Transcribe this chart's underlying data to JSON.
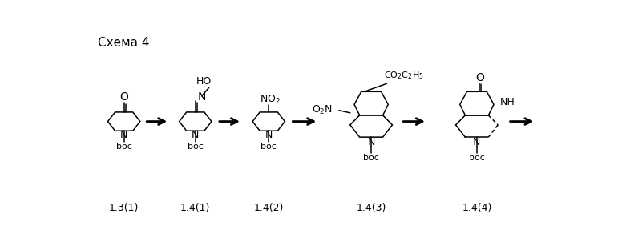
{
  "title": "Схема 4",
  "bg": "#ffffff",
  "lc": "#000000",
  "figsize": [
    7.91,
    3.07
  ],
  "dpi": 100,
  "labels": [
    "1.3(1)",
    "1.4(1)",
    "1.4(2)",
    "1.4(3)",
    "1.4(4)"
  ]
}
